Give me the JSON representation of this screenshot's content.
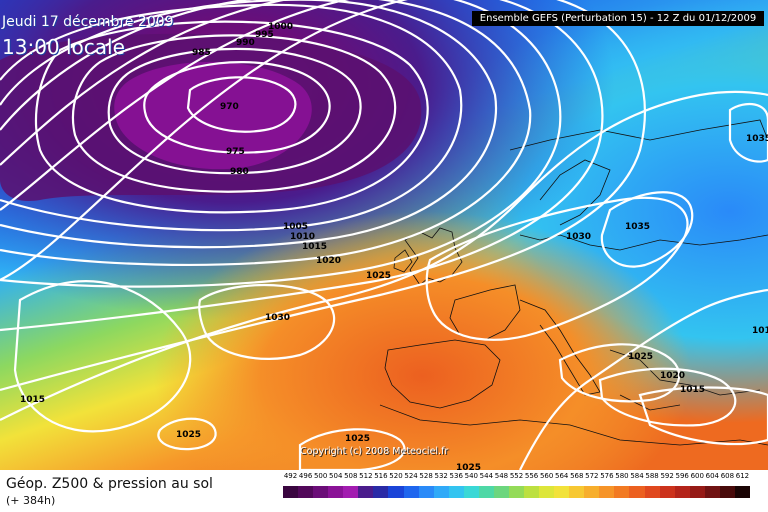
{
  "header": {
    "date": "Jeudi 17 décembre 2009",
    "time": "13:00 locale",
    "ensemble": "Ensemble GEFS (Perturbation 15)  -  12 Z du 01/12/2009"
  },
  "copyright": "Copyright (c) 2008 Meteociel.fr",
  "footer": {
    "title": "Géop. Z500 & pression au sol",
    "subtitle": "(+ 384h)"
  },
  "legend": {
    "values": [
      "492",
      "496",
      "500",
      "504",
      "508",
      "512",
      "516",
      "520",
      "524",
      "528",
      "532",
      "536",
      "540",
      "544",
      "548",
      "552",
      "556",
      "560",
      "564",
      "568",
      "572",
      "576",
      "580",
      "584",
      "588",
      "592",
      "596",
      "600",
      "604",
      "608",
      "612"
    ],
    "colors": [
      "#3a0640",
      "#52085a",
      "#6b0d78",
      "#8a1297",
      "#a21cb0",
      "#4a1c8c",
      "#2a2aa6",
      "#1a44d8",
      "#1f66ee",
      "#2a8af8",
      "#30aaf8",
      "#33c4f0",
      "#3ad8d6",
      "#4ed8a6",
      "#6cd67e",
      "#94db58",
      "#bce040",
      "#dde63a",
      "#f2e23a",
      "#f7c832",
      "#f7ae2c",
      "#f69428",
      "#f27a22",
      "#ec6020",
      "#e0481e",
      "#cc321c",
      "#b4241a",
      "#961a16",
      "#701212",
      "#480a0a",
      "#1a0404"
    ]
  },
  "isobars": [
    {
      "label": "1000"
    },
    {
      "label": "995"
    },
    {
      "label": "990"
    },
    {
      "label": "985"
    },
    {
      "label": "970"
    },
    {
      "label": "975"
    },
    {
      "label": "980"
    },
    {
      "label": "1005"
    },
    {
      "label": "1010"
    },
    {
      "label": "1015"
    },
    {
      "label": "1020"
    },
    {
      "label": "1025"
    },
    {
      "label": "1030"
    },
    {
      "label": "1030"
    },
    {
      "label": "1035"
    },
    {
      "label": "1035"
    },
    {
      "label": "1025"
    },
    {
      "label": "1020"
    },
    {
      "label": "1015"
    },
    {
      "label": "101"
    },
    {
      "label": "1015"
    },
    {
      "label": "1025"
    },
    {
      "label": "1025"
    },
    {
      "label": "1025"
    }
  ]
}
